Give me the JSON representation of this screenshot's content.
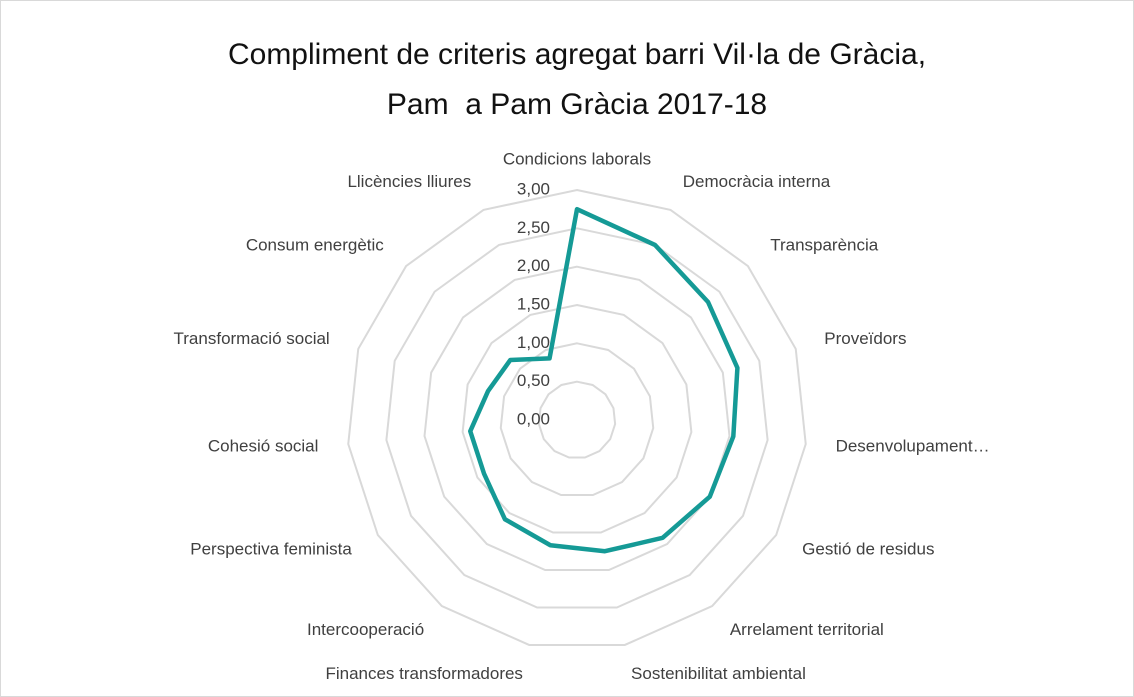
{
  "chart_data": {
    "type": "radar",
    "title": [
      "Compliment de criteris agregat barri Vil·la de Gràcia,",
      "Pam  a Pam Gràcia 2017-18"
    ],
    "categories": [
      "Condicions laborals",
      "Democràcia interna",
      "Transparència",
      "Proveïdors",
      "Desenvolupament…",
      "Gestió de residus",
      "Arrelament territorial",
      "Sostenibilitat ambiental",
      "Finances transformadores",
      "Intercooperació",
      "Perspectiva feminista",
      "Cohesió social",
      "Transformació social",
      "Consum energètic",
      "Llicències lliures"
    ],
    "values": [
      2.75,
      2.5,
      2.3,
      2.2,
      2.05,
      2.0,
      1.9,
      1.75,
      1.67,
      1.6,
      1.4,
      1.4,
      1.22,
      1.17,
      0.88
    ],
    "color": "#159a96",
    "ylim": [
      0,
      3
    ],
    "yticks": [
      {
        "value": 0,
        "label": "0,00"
      },
      {
        "value": 0.5,
        "label": "0,50"
      },
      {
        "value": 1,
        "label": "1,00"
      },
      {
        "value": 1.5,
        "label": "1,50"
      },
      {
        "value": 2,
        "label": "2,00"
      },
      {
        "value": 2.5,
        "label": "2,50"
      },
      {
        "value": 3,
        "label": "3,00"
      }
    ],
    "grid": true
  }
}
